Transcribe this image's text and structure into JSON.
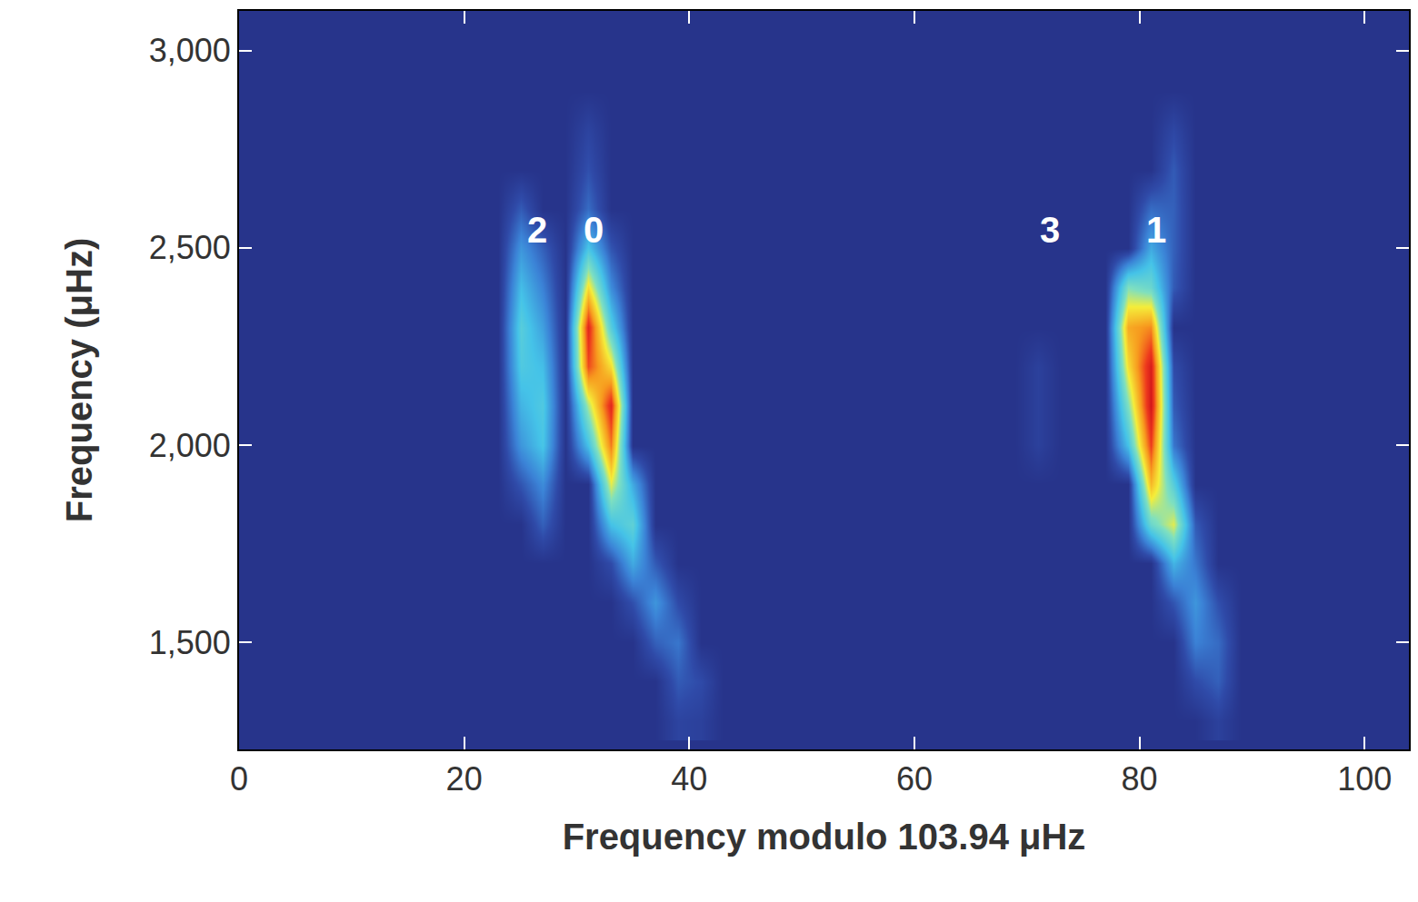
{
  "chart_data": {
    "type": "heatmap",
    "x_label": "Frequency modulo 103.94 μHz",
    "y_label": "Frequency (μHz)",
    "xlim": [
      0,
      103.94
    ],
    "ylim": [
      1228,
      3101
    ],
    "xticks": [
      0,
      20,
      40,
      60,
      80,
      100
    ],
    "yticks": [
      {
        "value": 1500,
        "label": "1,500"
      },
      {
        "value": 2000,
        "label": "2,000"
      },
      {
        "value": 2500,
        "label": "2,500"
      },
      {
        "value": 3000,
        "label": "3,000"
      }
    ],
    "zlim": [
      0,
      10
    ],
    "annotations": [
      {
        "text": "2",
        "x": 26.5,
        "y": 2545
      },
      {
        "text": "0",
        "x": 31.5,
        "y": 2545
      },
      {
        "text": "3",
        "x": 72,
        "y": 2545
      },
      {
        "text": "1",
        "x": 81.5,
        "y": 2545
      }
    ],
    "x": [
      1,
      3,
      5,
      7,
      9,
      11,
      13,
      15,
      17,
      19,
      21,
      23,
      25,
      27,
      29,
      31,
      33,
      35,
      37,
      39,
      41,
      43,
      45,
      47,
      49,
      51,
      53,
      55,
      57,
      59,
      61,
      63,
      65,
      67,
      69,
      71,
      73,
      75,
      77,
      79,
      81,
      83,
      85,
      87,
      89,
      91,
      93,
      95,
      97,
      99,
      101,
      103
    ],
    "y": [
      1300,
      1400,
      1500,
      1600,
      1700,
      1800,
      1900,
      2000,
      2100,
      2200,
      2300,
      2400,
      2500,
      2600,
      2700,
      2800,
      2900,
      3000
    ],
    "cells": [
      [
        0.5,
        0.5,
        0.5,
        0.5,
        0.5,
        0.5,
        0.5,
        0.5,
        0.5,
        0.5,
        0.5,
        0.5,
        0.5,
        0.5,
        0.5,
        0.5,
        0.5,
        0.5,
        0.5,
        1.0,
        0.9,
        0.5,
        0.5,
        0.5,
        0.5,
        0.5,
        0.5,
        0.5,
        0.5,
        0.5,
        0.5,
        0.5,
        0.5,
        0.5,
        0.5,
        0.5,
        0.5,
        0.5,
        0.5,
        0.5,
        0.5,
        0.5,
        0.5,
        0.9,
        0.5,
        0.5,
        0.5,
        0.5,
        0.5,
        0.5,
        0.5,
        0.5
      ],
      [
        0.5,
        0.5,
        0.5,
        0.5,
        0.5,
        0.5,
        0.5,
        0.5,
        0.5,
        0.5,
        0.5,
        0.5,
        0.5,
        0.5,
        0.5,
        0.5,
        0.5,
        0.5,
        0.5,
        1.5,
        1.2,
        0.5,
        0.5,
        0.5,
        0.5,
        0.5,
        0.5,
        0.5,
        0.5,
        0.5,
        0.5,
        0.5,
        0.5,
        0.5,
        0.5,
        0.5,
        0.5,
        0.5,
        0.5,
        0.5,
        0.5,
        0.5,
        1.2,
        1.6,
        0.5,
        0.5,
        0.5,
        0.5,
        0.5,
        0.5,
        0.5,
        0.5
      ],
      [
        0.5,
        0.5,
        0.5,
        0.5,
        0.5,
        0.5,
        0.5,
        0.5,
        0.5,
        0.5,
        0.5,
        0.5,
        0.5,
        0.5,
        0.5,
        0.5,
        0.5,
        0.5,
        1.6,
        2.0,
        0.5,
        0.5,
        0.5,
        0.5,
        0.5,
        0.5,
        0.5,
        0.5,
        0.5,
        0.5,
        0.5,
        0.5,
        0.5,
        0.5,
        0.5,
        0.5,
        0.5,
        0.5,
        0.5,
        0.5,
        0.5,
        0.5,
        2.2,
        1.8,
        0.5,
        0.5,
        0.5,
        0.5,
        0.5,
        0.5,
        0.5,
        0.5
      ],
      [
        0.5,
        0.5,
        0.5,
        0.5,
        0.5,
        0.5,
        0.5,
        0.5,
        0.5,
        0.5,
        0.5,
        0.5,
        0.5,
        0.5,
        0.5,
        0.5,
        0.5,
        1.3,
        2.6,
        1.2,
        0.5,
        0.5,
        0.5,
        0.5,
        0.5,
        0.5,
        0.5,
        0.5,
        0.5,
        0.5,
        0.5,
        0.5,
        0.5,
        0.5,
        0.5,
        0.5,
        0.5,
        0.5,
        0.5,
        0.5,
        0.5,
        1.4,
        2.6,
        1.3,
        0.5,
        0.5,
        0.5,
        0.5,
        0.5,
        0.5,
        0.5,
        0.5
      ],
      [
        0.5,
        0.5,
        0.5,
        0.5,
        0.5,
        0.5,
        0.5,
        0.5,
        0.5,
        0.5,
        0.5,
        0.5,
        0.5,
        0.5,
        0.5,
        0.5,
        1.2,
        3.0,
        1.5,
        0.5,
        0.5,
        0.5,
        0.5,
        0.5,
        0.5,
        0.5,
        0.5,
        0.5,
        0.5,
        0.5,
        0.5,
        0.5,
        0.5,
        0.5,
        0.5,
        0.5,
        0.5,
        0.5,
        0.5,
        0.5,
        0.5,
        3.2,
        2.0,
        0.5,
        0.5,
        0.5,
        0.5,
        0.5,
        0.5,
        0.5,
        0.5,
        0.5
      ],
      [
        0.5,
        0.5,
        0.5,
        0.5,
        0.5,
        0.5,
        0.5,
        0.5,
        0.5,
        0.5,
        0.5,
        0.5,
        0.5,
        1.6,
        0.5,
        0.5,
        3.5,
        4.2,
        0.5,
        0.5,
        0.5,
        0.5,
        0.5,
        0.5,
        0.5,
        0.5,
        0.5,
        0.5,
        0.5,
        0.5,
        0.5,
        0.5,
        0.5,
        0.5,
        0.5,
        0.5,
        0.5,
        0.5,
        0.5,
        0.5,
        4.5,
        6.0,
        1.5,
        0.5,
        0.5,
        0.5,
        0.5,
        0.5,
        0.5,
        0.5,
        0.5,
        0.5
      ],
      [
        0.5,
        0.5,
        0.5,
        0.5,
        0.5,
        0.5,
        0.5,
        0.5,
        0.5,
        0.5,
        0.5,
        0.5,
        1.4,
        2.4,
        0.5,
        0.5,
        6.0,
        3.0,
        0.5,
        0.5,
        0.5,
        0.5,
        0.5,
        0.5,
        0.5,
        0.5,
        0.5,
        0.5,
        0.5,
        0.5,
        0.5,
        0.5,
        0.5,
        0.5,
        0.5,
        0.5,
        0.5,
        0.5,
        0.5,
        0.5,
        7.2,
        4.0,
        0.5,
        0.5,
        0.5,
        0.5,
        0.5,
        0.5,
        0.5,
        0.5,
        0.5,
        0.5
      ],
      [
        0.5,
        0.5,
        0.5,
        0.5,
        0.5,
        0.5,
        0.5,
        0.5,
        0.5,
        0.5,
        0.5,
        0.5,
        2.6,
        3.6,
        0.5,
        3.5,
        8.2,
        0.5,
        0.5,
        0.5,
        0.5,
        0.5,
        0.5,
        0.5,
        0.5,
        0.5,
        0.5,
        0.5,
        0.5,
        0.5,
        0.5,
        0.5,
        0.5,
        0.5,
        0.5,
        0.9,
        0.5,
        0.5,
        0.5,
        3.5,
        9.0,
        2.0,
        0.5,
        0.5,
        0.5,
        0.5,
        0.5,
        0.5,
        0.5,
        0.5,
        0.5,
        0.5
      ],
      [
        0.5,
        0.5,
        0.5,
        0.5,
        0.5,
        0.5,
        0.5,
        0.5,
        0.5,
        0.5,
        0.5,
        0.5,
        3.2,
        3.8,
        0.5,
        5.5,
        9.5,
        0.5,
        0.5,
        0.5,
        0.5,
        0.5,
        0.5,
        0.5,
        0.5,
        0.5,
        0.5,
        0.5,
        0.5,
        0.5,
        0.5,
        0.5,
        0.5,
        0.5,
        0.5,
        0.9,
        0.5,
        0.5,
        0.5,
        5.0,
        10.0,
        1.5,
        0.5,
        0.5,
        0.5,
        0.5,
        0.5,
        0.5,
        0.5,
        0.5,
        0.5,
        0.5
      ],
      [
        0.5,
        0.5,
        0.5,
        0.5,
        0.5,
        0.5,
        0.5,
        0.5,
        0.5,
        0.5,
        0.5,
        0.5,
        3.8,
        3.4,
        0.5,
        8.8,
        6.5,
        0.5,
        0.5,
        0.5,
        0.5,
        0.5,
        0.5,
        0.5,
        0.5,
        0.5,
        0.5,
        0.5,
        0.5,
        0.5,
        0.5,
        0.5,
        0.5,
        0.5,
        0.5,
        0.9,
        0.5,
        0.5,
        0.5,
        6.5,
        9.8,
        1.2,
        0.5,
        0.5,
        0.5,
        0.5,
        0.5,
        0.5,
        0.5,
        0.5,
        0.5,
        0.5
      ],
      [
        0.5,
        0.5,
        0.5,
        0.5,
        0.5,
        0.5,
        0.5,
        0.5,
        0.5,
        0.5,
        0.5,
        0.5,
        4.0,
        2.8,
        0.5,
        9.5,
        4.0,
        0.5,
        0.5,
        0.5,
        0.5,
        0.5,
        0.5,
        0.5,
        0.5,
        0.5,
        0.5,
        0.5,
        0.5,
        0.5,
        0.5,
        0.5,
        0.5,
        0.5,
        0.5,
        0.5,
        0.5,
        0.5,
        0.5,
        7.5,
        8.0,
        0.5,
        0.5,
        0.5,
        0.5,
        0.5,
        0.5,
        0.5,
        0.5,
        0.5,
        0.5,
        0.5
      ],
      [
        0.5,
        0.5,
        0.5,
        0.5,
        0.5,
        0.5,
        0.5,
        0.5,
        0.5,
        0.5,
        0.5,
        0.5,
        3.4,
        2.2,
        0.5,
        6.5,
        2.4,
        0.5,
        0.5,
        0.5,
        0.5,
        0.5,
        0.5,
        0.5,
        0.5,
        0.5,
        0.5,
        0.5,
        0.5,
        0.5,
        0.5,
        0.5,
        0.5,
        0.5,
        0.5,
        0.5,
        0.5,
        0.5,
        0.5,
        5.0,
        4.5,
        1.5,
        0.5,
        0.5,
        0.5,
        0.5,
        0.5,
        0.5,
        0.5,
        0.5,
        0.5,
        0.5
      ],
      [
        0.5,
        0.5,
        0.5,
        0.5,
        0.5,
        0.5,
        0.5,
        0.5,
        0.5,
        0.5,
        0.5,
        0.5,
        2.6,
        1.6,
        0.5,
        3.6,
        1.4,
        0.5,
        0.5,
        0.5,
        0.5,
        0.5,
        0.5,
        0.5,
        0.5,
        0.5,
        0.5,
        0.5,
        0.5,
        0.5,
        0.5,
        0.5,
        0.5,
        0.5,
        0.5,
        0.5,
        0.5,
        0.5,
        0.5,
        0.5,
        3.0,
        1.6,
        0.5,
        0.5,
        0.5,
        0.5,
        0.5,
        0.5,
        0.5,
        0.5,
        0.5,
        0.5
      ],
      [
        0.5,
        0.5,
        0.5,
        0.5,
        0.5,
        0.5,
        0.5,
        0.5,
        0.5,
        0.5,
        0.5,
        0.5,
        1.5,
        0.5,
        0.5,
        1.8,
        0.5,
        0.5,
        0.5,
        0.5,
        0.5,
        0.5,
        0.5,
        0.5,
        0.5,
        0.5,
        0.5,
        0.5,
        0.5,
        0.5,
        0.5,
        0.5,
        0.5,
        0.5,
        0.5,
        0.5,
        0.5,
        0.5,
        0.5,
        0.5,
        1.8,
        1.6,
        0.5,
        0.5,
        0.5,
        0.5,
        0.5,
        0.5,
        0.5,
        0.5,
        0.5,
        0.5
      ],
      [
        0.5,
        0.5,
        0.5,
        0.5,
        0.5,
        0.5,
        0.5,
        0.5,
        0.5,
        0.5,
        0.5,
        0.5,
        0.5,
        0.5,
        0.5,
        1.3,
        0.5,
        0.5,
        0.5,
        0.5,
        0.5,
        0.5,
        0.5,
        0.5,
        0.5,
        0.5,
        0.5,
        0.5,
        0.5,
        0.5,
        0.5,
        0.5,
        0.5,
        0.5,
        0.5,
        0.5,
        0.5,
        0.5,
        0.5,
        0.5,
        0.5,
        1.5,
        0.5,
        0.5,
        0.5,
        0.5,
        0.5,
        0.5,
        0.5,
        0.5,
        0.5,
        0.5
      ],
      [
        0.5,
        0.5,
        0.5,
        0.5,
        0.5,
        0.5,
        0.5,
        0.5,
        0.5,
        0.5,
        0.5,
        0.5,
        0.5,
        0.5,
        0.5,
        1.0,
        0.5,
        0.5,
        0.5,
        0.5,
        0.5,
        0.5,
        0.5,
        0.5,
        0.5,
        0.5,
        0.5,
        0.5,
        0.5,
        0.5,
        0.5,
        0.5,
        0.5,
        0.5,
        0.5,
        0.5,
        0.5,
        0.5,
        0.5,
        0.5,
        0.5,
        1.1,
        0.5,
        0.5,
        0.5,
        0.5,
        0.5,
        0.5,
        0.5,
        0.5,
        0.5,
        0.5
      ],
      [
        0.5,
        0.5,
        0.5,
        0.5,
        0.5,
        0.5,
        0.5,
        0.5,
        0.5,
        0.5,
        0.5,
        0.5,
        0.5,
        0.5,
        0.5,
        0.5,
        0.5,
        0.5,
        0.5,
        0.5,
        0.5,
        0.5,
        0.5,
        0.5,
        0.5,
        0.5,
        0.5,
        0.5,
        0.5,
        0.5,
        0.5,
        0.5,
        0.5,
        0.5,
        0.5,
        0.5,
        0.5,
        0.5,
        0.5,
        0.5,
        0.5,
        0.5,
        0.5,
        0.5,
        0.5,
        0.5,
        0.5,
        0.5,
        0.5,
        0.5,
        0.5,
        0.5
      ],
      [
        0.5,
        0.5,
        0.5,
        0.5,
        0.5,
        0.5,
        0.5,
        0.5,
        0.5,
        0.5,
        0.5,
        0.5,
        0.5,
        0.5,
        0.5,
        0.5,
        0.5,
        0.5,
        0.5,
        0.5,
        0.5,
        0.5,
        0.5,
        0.5,
        0.5,
        0.5,
        0.5,
        0.5,
        0.5,
        0.5,
        0.5,
        0.5,
        0.5,
        0.5,
        0.5,
        0.5,
        0.5,
        0.5,
        0.5,
        0.5,
        0.5,
        0.5,
        0.5,
        0.5,
        0.5,
        0.5,
        0.5,
        0.5,
        0.5,
        0.5,
        0.5,
        0.5
      ]
    ]
  }
}
